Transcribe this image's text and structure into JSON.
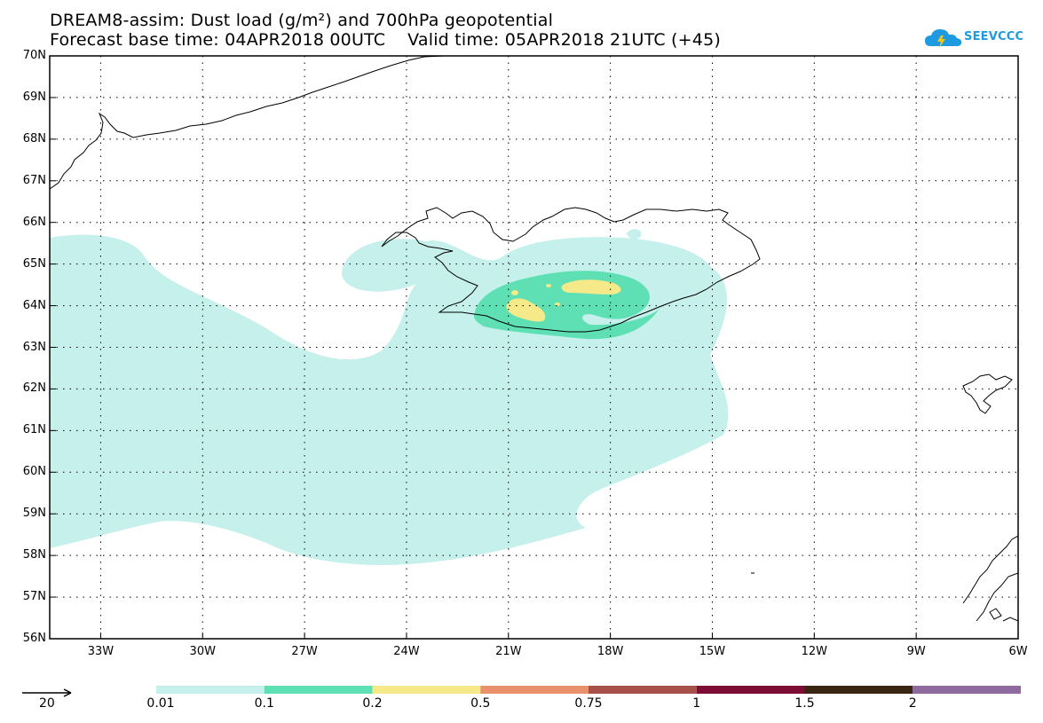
{
  "title_line1": "DREAM8-assim: Dust load (g/m²) and 700hPa geopotential",
  "title_line2": "Forecast base time: 04APR2018 00UTC    Valid time: 05APR2018 21UTC (+45)",
  "logo": {
    "name": "seevccc-logo",
    "text": "SEEVCCC",
    "color": "#1e9be0"
  },
  "map": {
    "lon_range": [
      -34.5,
      -6
    ],
    "lat_range": [
      56,
      70
    ],
    "grid": "dotted",
    "lon_labels": [
      "33W",
      "30W",
      "27W",
      "24W",
      "21W",
      "18W",
      "15W",
      "12W",
      "9W",
      "6W"
    ],
    "lon_values": [
      -33,
      -30,
      -27,
      -24,
      -21,
      -18,
      -15,
      -12,
      -9,
      -6
    ],
    "lat_labels": [
      "56N",
      "57N",
      "58N",
      "59N",
      "60N",
      "61N",
      "62N",
      "63N",
      "64N",
      "65N",
      "66N",
      "67N",
      "68N",
      "69N",
      "70N"
    ],
    "lat_values": [
      56,
      57,
      58,
      59,
      60,
      61,
      62,
      63,
      64,
      65,
      66,
      67,
      68,
      69,
      70
    ]
  },
  "colorbar": {
    "colors": [
      "#c5f0ec",
      "#5fe0b4",
      "#f5e98a",
      "#e8916a",
      "#a8514a",
      "#7e0d35",
      "#3a2512",
      "#8f6a9e"
    ],
    "labels": [
      "0.01",
      "0.1",
      "0.2",
      "0.5",
      "0.75",
      "1",
      "1.5",
      "2"
    ]
  },
  "vector_ref": {
    "label": "20"
  }
}
